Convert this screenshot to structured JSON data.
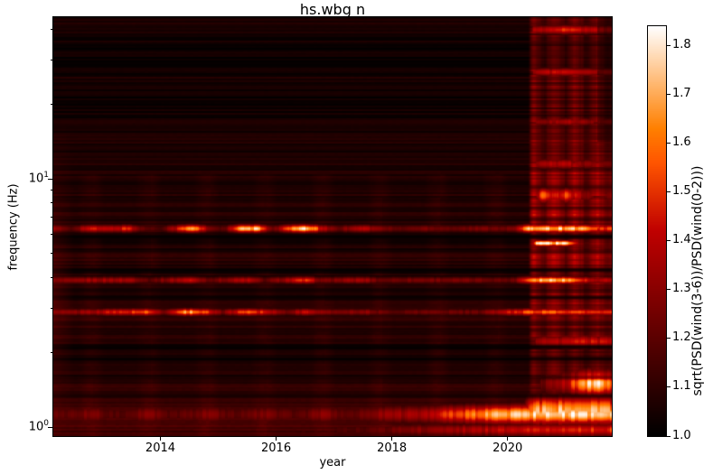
{
  "chart_data": {
    "type": "heatmap",
    "title": "hs.wbg n",
    "xlabel": "year",
    "ylabel": "frequency (Hz)",
    "x_range": [
      2012.15,
      2021.8
    ],
    "x_ticks": [
      2014,
      2016,
      2018,
      2020
    ],
    "y_scale": "log",
    "y_range_hz": [
      0.92,
      44.8
    ],
    "y_major_ticks_hz": [
      1,
      10
    ],
    "y_minor_ticks_hz": [
      2,
      3,
      4,
      5,
      6,
      7,
      8,
      9,
      20,
      30,
      40
    ],
    "colorbar": {
      "label": "sqrt(PSD(wind(3-6))/PSD(wind(0-2)))",
      "ticks": [
        1.0,
        1.1,
        1.2,
        1.3,
        1.4,
        1.5,
        1.6,
        1.7,
        1.8
      ],
      "vmin": 1.0,
      "vmax": 1.84,
      "colormap": "gist_heat",
      "colormap_stops": {
        "black": "#000000",
        "dark_red": "#550000",
        "red": "#b30000",
        "orange": "#ff6800",
        "white": "#ffffff"
      }
    },
    "baseline_profile": [
      [
        -0.04,
        1.14
      ],
      [
        0.03,
        1.16
      ],
      [
        0.09,
        1.12
      ],
      [
        0.17,
        1.1
      ],
      [
        0.24,
        1.06
      ],
      [
        0.3,
        1.05
      ],
      [
        0.37,
        1.09
      ],
      [
        0.44,
        1.11
      ],
      [
        0.5,
        1.08
      ],
      [
        0.56,
        1.1
      ],
      [
        0.62,
        1.06
      ],
      [
        0.68,
        1.1
      ],
      [
        0.74,
        1.05
      ],
      [
        0.79,
        1.1
      ],
      [
        0.83,
        1.1
      ],
      [
        0.88,
        1.08
      ],
      [
        0.93,
        1.07
      ],
      [
        1.0,
        1.065
      ],
      [
        1.08,
        1.06
      ],
      [
        1.16,
        1.055
      ],
      [
        1.22,
        1.05
      ],
      [
        1.28,
        1.03
      ],
      [
        1.34,
        1.025
      ],
      [
        1.4,
        1.06
      ],
      [
        1.46,
        1.02
      ],
      [
        1.52,
        1.03
      ],
      [
        1.58,
        1.04
      ],
      [
        1.62,
        1.07
      ],
      [
        1.651,
        1.045
      ]
    ],
    "seasonal": {
      "amplitude": 0.03,
      "peak_phase": 0.8,
      "max_log_freq": 1.02
    },
    "bright_lines": [
      {
        "freq": 6.3,
        "sigma": 0.011,
        "envelope": [
          [
            2012.15,
            1.3
          ],
          [
            2012.45,
            1.2
          ],
          [
            2012.75,
            1.5
          ],
          [
            2013.1,
            1.42
          ],
          [
            2013.45,
            1.55
          ],
          [
            2013.65,
            1.25
          ],
          [
            2014.0,
            1.18
          ],
          [
            2014.35,
            1.55
          ],
          [
            2014.55,
            1.8
          ],
          [
            2014.85,
            1.3
          ],
          [
            2015.1,
            1.2
          ],
          [
            2015.4,
            1.78
          ],
          [
            2015.65,
            1.82
          ],
          [
            2015.95,
            1.25
          ],
          [
            2016.3,
            1.72
          ],
          [
            2016.55,
            1.85
          ],
          [
            2016.85,
            1.4
          ],
          [
            2017.1,
            1.25
          ],
          [
            2017.45,
            1.48
          ],
          [
            2017.7,
            1.35
          ],
          [
            2018.1,
            1.22
          ],
          [
            2018.6,
            1.3
          ],
          [
            2019.1,
            1.25
          ],
          [
            2019.6,
            1.3
          ],
          [
            2020.1,
            1.28
          ],
          [
            2020.42,
            1.86
          ],
          [
            2020.7,
            1.84
          ],
          [
            2021.0,
            1.8
          ],
          [
            2021.3,
            1.82
          ],
          [
            2021.45,
            1.55
          ],
          [
            2021.8,
            1.6
          ]
        ]
      },
      {
        "freq": 3.9,
        "sigma": 0.01,
        "envelope": [
          [
            2012.15,
            1.22
          ],
          [
            2012.75,
            1.38
          ],
          [
            2013.5,
            1.4
          ],
          [
            2013.8,
            1.22
          ],
          [
            2014.5,
            1.48
          ],
          [
            2014.85,
            1.25
          ],
          [
            2015.5,
            1.45
          ],
          [
            2015.8,
            1.22
          ],
          [
            2016.5,
            1.55
          ],
          [
            2016.8,
            1.28
          ],
          [
            2017.5,
            1.4
          ],
          [
            2017.8,
            1.25
          ],
          [
            2018.5,
            1.3
          ],
          [
            2019.5,
            1.28
          ],
          [
            2020.1,
            1.25
          ],
          [
            2020.45,
            1.8
          ],
          [
            2020.9,
            1.85
          ],
          [
            2021.2,
            1.7
          ],
          [
            2021.45,
            1.4
          ],
          [
            2021.8,
            1.45
          ]
        ]
      },
      {
        "freq": 2.9,
        "sigma": 0.01,
        "envelope": [
          [
            2012.15,
            1.25
          ],
          [
            2012.8,
            1.4
          ],
          [
            2013.45,
            1.55
          ],
          [
            2013.75,
            1.6
          ],
          [
            2014.05,
            1.3
          ],
          [
            2014.45,
            1.75
          ],
          [
            2014.75,
            1.65
          ],
          [
            2015.05,
            1.28
          ],
          [
            2015.5,
            1.65
          ],
          [
            2015.85,
            1.5
          ],
          [
            2016.15,
            1.28
          ],
          [
            2016.55,
            1.48
          ],
          [
            2016.9,
            1.3
          ],
          [
            2017.5,
            1.35
          ],
          [
            2018.0,
            1.22
          ],
          [
            2018.6,
            1.28
          ],
          [
            2019.5,
            1.25
          ],
          [
            2020.42,
            1.65
          ],
          [
            2020.9,
            1.6
          ],
          [
            2021.3,
            1.55
          ],
          [
            2021.8,
            1.5
          ]
        ]
      },
      {
        "freq": 5.5,
        "sigma": 0.008,
        "envelope": [
          [
            2012.15,
            1.0
          ],
          [
            2020.4,
            1.0
          ],
          [
            2020.5,
            1.85
          ],
          [
            2021.0,
            1.86
          ],
          [
            2021.15,
            1.55
          ],
          [
            2021.3,
            1.2
          ],
          [
            2021.8,
            1.15
          ]
        ]
      },
      {
        "freq": 8.6,
        "sigma": 0.022,
        "envelope": [
          [
            2012.15,
            1.0
          ],
          [
            2020.4,
            1.0
          ],
          [
            2020.45,
            1.15
          ],
          [
            2020.6,
            1.62
          ],
          [
            2020.8,
            1.45
          ],
          [
            2021.0,
            1.6
          ],
          [
            2021.25,
            1.4
          ],
          [
            2021.5,
            1.25
          ],
          [
            2021.8,
            1.3
          ]
        ]
      },
      {
        "freq": 11.5,
        "sigma": 0.015,
        "envelope": [
          [
            2012.15,
            1.0
          ],
          [
            2020.4,
            1.0
          ],
          [
            2020.45,
            1.3
          ],
          [
            2020.9,
            1.45
          ],
          [
            2021.3,
            1.35
          ],
          [
            2021.8,
            1.25
          ]
        ]
      },
      {
        "freq": 17.0,
        "sigma": 0.012,
        "envelope": [
          [
            2012.15,
            1.0
          ],
          [
            2020.4,
            1.0
          ],
          [
            2020.45,
            1.3
          ],
          [
            2021.0,
            1.4
          ],
          [
            2021.5,
            1.3
          ],
          [
            2021.8,
            1.35
          ]
        ]
      },
      {
        "freq": 27.0,
        "sigma": 0.012,
        "envelope": [
          [
            2012.15,
            1.0
          ],
          [
            2020.4,
            1.0
          ],
          [
            2020.45,
            1.35
          ],
          [
            2020.9,
            1.5
          ],
          [
            2021.3,
            1.4
          ],
          [
            2021.8,
            1.3
          ]
        ]
      },
      {
        "freq": 40.0,
        "sigma": 0.013,
        "envelope": [
          [
            2012.15,
            1.0
          ],
          [
            2020.4,
            1.0
          ],
          [
            2020.45,
            1.4
          ],
          [
            2021.0,
            1.55
          ],
          [
            2021.4,
            1.45
          ],
          [
            2021.8,
            1.35
          ]
        ]
      },
      {
        "freq": 2.2,
        "sigma": 0.02,
        "envelope": [
          [
            2012.15,
            1.0
          ],
          [
            2020.4,
            1.0
          ],
          [
            2020.5,
            1.35
          ],
          [
            2021.0,
            1.45
          ],
          [
            2021.4,
            1.5
          ],
          [
            2021.8,
            1.45
          ]
        ]
      },
      {
        "freq": 1.5,
        "sigma": 0.035,
        "envelope": [
          [
            2012.15,
            1.0
          ],
          [
            2020.5,
            1.0
          ],
          [
            2020.6,
            1.25
          ],
          [
            2021.05,
            1.45
          ],
          [
            2021.3,
            1.8
          ],
          [
            2021.6,
            1.82
          ],
          [
            2021.8,
            1.65
          ]
        ]
      },
      {
        "freq": 1.12,
        "sigma": 0.026,
        "winter_boost": 0.05,
        "envelope": [
          [
            2012.15,
            1.22
          ],
          [
            2012.8,
            1.26
          ],
          [
            2013.2,
            1.2
          ],
          [
            2013.8,
            1.26
          ],
          [
            2014.2,
            1.21
          ],
          [
            2014.8,
            1.27
          ],
          [
            2015.3,
            1.22
          ],
          [
            2015.8,
            1.27
          ],
          [
            2016.3,
            1.22
          ],
          [
            2016.8,
            1.28
          ],
          [
            2017.3,
            1.24
          ],
          [
            2017.8,
            1.34
          ],
          [
            2018.2,
            1.38
          ],
          [
            2018.7,
            1.45
          ],
          [
            2019.0,
            1.55
          ],
          [
            2019.3,
            1.62
          ],
          [
            2019.6,
            1.72
          ],
          [
            2019.9,
            1.78
          ],
          [
            2020.3,
            1.83
          ],
          [
            2020.6,
            1.86
          ],
          [
            2021.0,
            1.85
          ],
          [
            2021.35,
            1.88
          ],
          [
            2021.6,
            1.86
          ],
          [
            2021.8,
            1.78
          ]
        ]
      },
      {
        "freq": 1.16,
        "sigma": 0.04,
        "envelope": [
          [
            2012.15,
            1.0
          ],
          [
            2020.25,
            1.0
          ],
          [
            2020.4,
            1.7
          ],
          [
            2020.8,
            1.8
          ],
          [
            2021.1,
            1.75
          ],
          [
            2021.4,
            1.82
          ],
          [
            2021.8,
            1.72
          ]
        ]
      },
      {
        "freq": 0.97,
        "sigma": 0.018,
        "envelope": [
          [
            2012.15,
            1.1
          ],
          [
            2016.0,
            1.12
          ],
          [
            2017.5,
            1.2
          ],
          [
            2018.5,
            1.32
          ],
          [
            2019.5,
            1.42
          ],
          [
            2020.5,
            1.5
          ],
          [
            2021.8,
            1.55
          ]
        ]
      }
    ],
    "dark_lines": [
      {
        "freq": 6.9,
        "strength": 0.5
      },
      {
        "freq": 5.85,
        "strength": 0.9
      },
      {
        "freq": 5.1,
        "strength": 0.45
      },
      {
        "freq": 4.28,
        "strength": 0.85
      },
      {
        "freq": 3.55,
        "strength": 0.5
      },
      {
        "freq": 3.32,
        "strength": 0.8
      },
      {
        "freq": 2.62,
        "strength": 0.5
      },
      {
        "freq": 2.45,
        "strength": 0.45
      },
      {
        "freq": 2.1,
        "strength": 0.85
      },
      {
        "freq": 1.88,
        "strength": 0.75
      },
      {
        "freq": 1.58,
        "strength": 0.5
      },
      {
        "freq": 1.33,
        "strength": 0.55
      },
      {
        "freq": 9.3,
        "strength": 0.35
      },
      {
        "freq": 7.6,
        "strength": 0.4
      },
      {
        "freq": 13.0,
        "strength": 0.3
      }
    ],
    "storm_band": {
      "start": 2020.35,
      "ramp_years": 0.1,
      "end": 2021.8,
      "gain_profile": [
        [
          -0.04,
          0.02
        ],
        [
          0.05,
          0.03
        ],
        [
          0.15,
          0.1
        ],
        [
          0.3,
          0.14
        ],
        [
          0.45,
          0.18
        ],
        [
          0.6,
          0.22
        ],
        [
          0.8,
          0.26
        ],
        [
          0.95,
          0.24
        ],
        [
          1.1,
          0.2
        ],
        [
          1.25,
          0.17
        ],
        [
          1.42,
          0.19
        ],
        [
          1.55,
          0.15
        ],
        [
          1.651,
          0.17
        ]
      ]
    },
    "left_edge_warm": {
      "until": 2012.5,
      "gain": 0.25,
      "center_log_freq": 0.55
    }
  }
}
